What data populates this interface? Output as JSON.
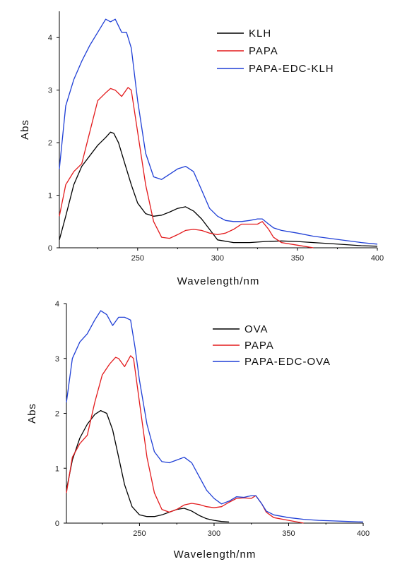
{
  "chart_data": [
    {
      "type": "line",
      "xlabel": "Wavelength/nm",
      "ylabel": "Abs",
      "xlim": [
        201,
        400
      ],
      "ylim": [
        0,
        4.5
      ],
      "xticks": [
        250,
        300,
        350,
        400
      ],
      "yticks": [
        0,
        1,
        2,
        3,
        4
      ],
      "legend_position": "top-right",
      "series": [
        {
          "name": "KLH",
          "color": "#000000",
          "x": [
            201,
            205,
            210,
            215,
            220,
            225,
            230,
            233,
            235,
            238,
            242,
            246,
            250,
            255,
            260,
            265,
            270,
            275,
            280,
            285,
            290,
            295,
            300,
            310,
            320,
            330,
            340,
            350,
            360,
            370,
            380,
            390,
            400
          ],
          "y": [
            0.15,
            0.6,
            1.2,
            1.55,
            1.75,
            1.95,
            2.1,
            2.2,
            2.18,
            2.0,
            1.6,
            1.2,
            0.85,
            0.65,
            0.6,
            0.62,
            0.68,
            0.75,
            0.78,
            0.7,
            0.55,
            0.35,
            0.15,
            0.1,
            0.1,
            0.12,
            0.13,
            0.12,
            0.1,
            0.08,
            0.06,
            0.04,
            0.03
          ]
        },
        {
          "name": "PAPA",
          "color": "#e31a1c",
          "x": [
            201,
            205,
            210,
            215,
            220,
            225,
            230,
            233,
            236,
            240,
            244,
            246,
            250,
            255,
            260,
            265,
            270,
            275,
            280,
            285,
            290,
            295,
            300,
            305,
            310,
            315,
            320,
            325,
            328,
            332,
            335,
            340,
            350,
            360
          ],
          "y": [
            0.6,
            1.2,
            1.45,
            1.6,
            2.2,
            2.8,
            2.95,
            3.03,
            3.0,
            2.88,
            3.05,
            3.0,
            2.2,
            1.2,
            0.5,
            0.2,
            0.18,
            0.25,
            0.33,
            0.35,
            0.33,
            0.28,
            0.25,
            0.28,
            0.35,
            0.45,
            0.45,
            0.45,
            0.5,
            0.35,
            0.2,
            0.1,
            0.05,
            0.0
          ]
        },
        {
          "name": "PAPA-EDC-KLH",
          "color": "#1f3fd6",
          "x": [
            201,
            205,
            210,
            215,
            220,
            225,
            230,
            233,
            236,
            240,
            243,
            246,
            250,
            255,
            260,
            265,
            270,
            275,
            280,
            285,
            290,
            295,
            300,
            305,
            310,
            315,
            320,
            325,
            328,
            332,
            335,
            340,
            350,
            360,
            370,
            380,
            390,
            400
          ],
          "y": [
            1.5,
            2.7,
            3.2,
            3.55,
            3.85,
            4.1,
            4.35,
            4.3,
            4.35,
            4.1,
            4.1,
            3.8,
            2.8,
            1.8,
            1.35,
            1.3,
            1.4,
            1.5,
            1.55,
            1.45,
            1.1,
            0.75,
            0.6,
            0.52,
            0.5,
            0.5,
            0.52,
            0.55,
            0.55,
            0.45,
            0.38,
            0.33,
            0.28,
            0.22,
            0.18,
            0.14,
            0.1,
            0.07
          ]
        }
      ]
    },
    {
      "type": "line",
      "xlabel": "Wavelength/nm",
      "ylabel": "Abs",
      "xlim": [
        201,
        400
      ],
      "ylim": [
        0,
        4.0
      ],
      "xticks": [
        250,
        300,
        350,
        400
      ],
      "yticks": [
        0,
        1,
        2,
        3,
        4
      ],
      "legend_position": "top-right",
      "series": [
        {
          "name": "OVA",
          "color": "#000000",
          "x": [
            201,
            205,
            210,
            215,
            220,
            224,
            228,
            232,
            236,
            240,
            245,
            250,
            255,
            260,
            265,
            270,
            275,
            280,
            285,
            290,
            295,
            300,
            305,
            310
          ],
          "y": [
            0.6,
            1.15,
            1.55,
            1.8,
            1.98,
            2.05,
            2.0,
            1.7,
            1.2,
            0.7,
            0.3,
            0.15,
            0.12,
            0.12,
            0.15,
            0.2,
            0.25,
            0.27,
            0.22,
            0.14,
            0.08,
            0.05,
            0.03,
            0.02
          ]
        },
        {
          "name": "PAPA",
          "color": "#e31a1c",
          "x": [
            201,
            205,
            210,
            215,
            220,
            225,
            230,
            234,
            236,
            240,
            244,
            246,
            250,
            255,
            260,
            265,
            270,
            275,
            280,
            285,
            290,
            295,
            300,
            305,
            310,
            315,
            320,
            325,
            328,
            332,
            335,
            340,
            350,
            360
          ],
          "y": [
            0.55,
            1.2,
            1.45,
            1.6,
            2.2,
            2.7,
            2.9,
            3.02,
            3.0,
            2.85,
            3.05,
            3.0,
            2.2,
            1.2,
            0.55,
            0.25,
            0.2,
            0.25,
            0.33,
            0.36,
            0.34,
            0.3,
            0.28,
            0.3,
            0.38,
            0.45,
            0.46,
            0.45,
            0.5,
            0.35,
            0.2,
            0.1,
            0.05,
            0.0
          ]
        },
        {
          "name": "PAPA-EDC-OVA",
          "color": "#1f3fd6",
          "x": [
            201,
            205,
            210,
            215,
            220,
            224,
            228,
            232,
            236,
            240,
            244,
            247,
            250,
            255,
            260,
            265,
            270,
            275,
            280,
            285,
            290,
            295,
            300,
            305,
            310,
            315,
            320,
            325,
            328,
            332,
            335,
            340,
            350,
            360,
            370,
            380,
            390,
            400
          ],
          "y": [
            2.2,
            3.0,
            3.3,
            3.45,
            3.7,
            3.87,
            3.8,
            3.6,
            3.75,
            3.75,
            3.7,
            3.2,
            2.6,
            1.8,
            1.3,
            1.12,
            1.1,
            1.15,
            1.2,
            1.1,
            0.85,
            0.6,
            0.45,
            0.35,
            0.4,
            0.48,
            0.47,
            0.5,
            0.5,
            0.35,
            0.22,
            0.15,
            0.1,
            0.07,
            0.05,
            0.04,
            0.03,
            0.02
          ]
        }
      ]
    }
  ]
}
